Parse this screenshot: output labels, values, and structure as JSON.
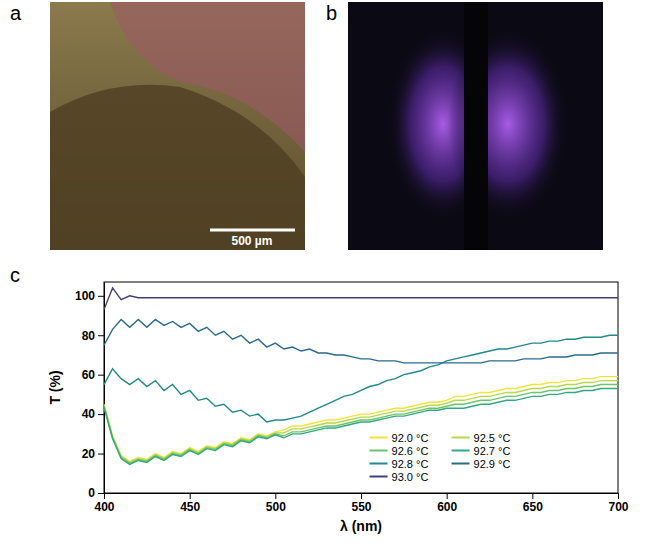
{
  "panels": [
    {
      "label": "a",
      "scale_bar": "500 µm"
    },
    {
      "label": "b"
    },
    {
      "label": "c"
    }
  ],
  "chart_data": {
    "type": "line",
    "xlabel": "λ (nm)",
    "ylabel": "T (%)",
    "x": [
      400,
      405,
      410,
      415,
      420,
      425,
      430,
      435,
      440,
      445,
      450,
      455,
      460,
      465,
      470,
      475,
      480,
      485,
      490,
      495,
      500,
      505,
      510,
      515,
      520,
      525,
      530,
      535,
      540,
      545,
      550,
      555,
      560,
      565,
      570,
      575,
      580,
      585,
      590,
      595,
      600,
      605,
      610,
      615,
      620,
      625,
      630,
      635,
      640,
      645,
      650,
      655,
      660,
      665,
      670,
      675,
      680,
      685,
      690,
      695,
      700
    ],
    "xlim": [
      400,
      700
    ],
    "xticks": [
      400,
      450,
      500,
      550,
      600,
      650,
      700
    ],
    "ylim": [
      0,
      107
    ],
    "yticks": [
      0,
      20,
      40,
      60,
      80,
      100
    ],
    "legend": "lower right",
    "series": [
      {
        "name": "92.0 °C",
        "color": "#f2e33b",
        "values": [
          45,
          29,
          19,
          16,
          18,
          17,
          20,
          18,
          21,
          20,
          23,
          21,
          24,
          23,
          26,
          25,
          28,
          27,
          30,
          29,
          31,
          32,
          34,
          34,
          35,
          36,
          37,
          37,
          38,
          39,
          40,
          40,
          41,
          42,
          43,
          43,
          44,
          45,
          46,
          46,
          47,
          49,
          49,
          50,
          51,
          51,
          52,
          53,
          53,
          54,
          55,
          55,
          56,
          56,
          57,
          57,
          58,
          58,
          59,
          59,
          59
        ]
      },
      {
        "name": "92.5 °C",
        "color": "#b5d84c",
        "values": [
          44.5,
          28.5,
          18.5,
          15.5,
          17.5,
          16.5,
          19.5,
          17.5,
          20.5,
          19.5,
          22.5,
          20.5,
          23.5,
          22.5,
          25.5,
          24.5,
          27.5,
          26.5,
          29.5,
          28.5,
          30.5,
          30.5,
          32.5,
          32.5,
          33.5,
          34.5,
          35.5,
          35.5,
          36.5,
          37.5,
          38.5,
          38.5,
          39.5,
          40.5,
          41.5,
          41.5,
          42.5,
          43.5,
          44.5,
          44.5,
          45.5,
          47,
          47,
          48,
          49,
          49,
          50,
          51,
          51,
          52,
          53,
          53,
          54,
          54,
          55,
          55,
          56,
          56,
          57,
          57,
          57
        ]
      },
      {
        "name": "92.6 °C",
        "color": "#6cc46a",
        "values": [
          44,
          28,
          18,
          15,
          17,
          16,
          19,
          17,
          20,
          19,
          22,
          20,
          23,
          22,
          25,
          24,
          27,
          26,
          29,
          28,
          30,
          29,
          31,
          31,
          32,
          33,
          34,
          34,
          35,
          36,
          37,
          37,
          38,
          39,
          40,
          40,
          41,
          42,
          43,
          43,
          44,
          45,
          45,
          46,
          47,
          47,
          48,
          49,
          49,
          50,
          51,
          51,
          52,
          52,
          53,
          53,
          54,
          54,
          55,
          55,
          55
        ]
      },
      {
        "name": "92.7 °C",
        "color": "#34a880",
        "values": [
          43.5,
          27.5,
          17.5,
          14.5,
          16.5,
          15.5,
          18.5,
          16.5,
          19.5,
          18.5,
          21.5,
          19.5,
          22.5,
          21.5,
          24.5,
          23.5,
          26.5,
          25.5,
          28.5,
          27.5,
          29.5,
          28,
          30,
          30,
          31,
          32,
          33,
          33,
          34,
          35,
          36,
          36,
          37,
          38,
          39,
          39,
          40,
          41,
          42,
          42,
          43,
          43,
          43,
          44,
          45,
          45,
          46,
          47,
          47,
          48,
          49,
          49,
          50,
          50,
          51,
          51,
          52,
          52,
          53,
          53,
          53
        ]
      },
      {
        "name": "92.8 °C",
        "color": "#21898a",
        "values": [
          55,
          63,
          58,
          55,
          58,
          54,
          57,
          52,
          55,
          50,
          52,
          47,
          48,
          44,
          45,
          41,
          42,
          39,
          40,
          36,
          37,
          37,
          38,
          39,
          41,
          43,
          45,
          47,
          49,
          50,
          52,
          54,
          55,
          57,
          58,
          60,
          61,
          62,
          64,
          65,
          67,
          68,
          69,
          70,
          71,
          72,
          73,
          73,
          74,
          75,
          76,
          76,
          77,
          77,
          78,
          78,
          79,
          79,
          79,
          80,
          80
        ]
      },
      {
        "name": "92.9 °C",
        "color": "#2b6a8c",
        "values": [
          75,
          83,
          88,
          84,
          88,
          84,
          88,
          85,
          87,
          84,
          86,
          82,
          84,
          80,
          82,
          78,
          80,
          76,
          78,
          74,
          76,
          73,
          74,
          72,
          73,
          71,
          71,
          70,
          70,
          69,
          68,
          68,
          67,
          67,
          67,
          66,
          66,
          66,
          66,
          66,
          66,
          66,
          66,
          66,
          66,
          67,
          67,
          67,
          67,
          68,
          68,
          68,
          69,
          69,
          69,
          70,
          70,
          70,
          71,
          71,
          71
        ]
      },
      {
        "name": "93.0 °C",
        "color": "#453d7a",
        "values": [
          93,
          104,
          98,
          100,
          99,
          99,
          99,
          99,
          99,
          99,
          99,
          99,
          99,
          99,
          99,
          99,
          99,
          99,
          99,
          99,
          99,
          99,
          99,
          99,
          99,
          99,
          99,
          99,
          99,
          99,
          99,
          99,
          99,
          99,
          99,
          99,
          99,
          99,
          99,
          99,
          99,
          99,
          99,
          99,
          99,
          99,
          99,
          99,
          99,
          99,
          99,
          99,
          99,
          99,
          99,
          99,
          99,
          99,
          99,
          99,
          99
        ]
      }
    ]
  }
}
